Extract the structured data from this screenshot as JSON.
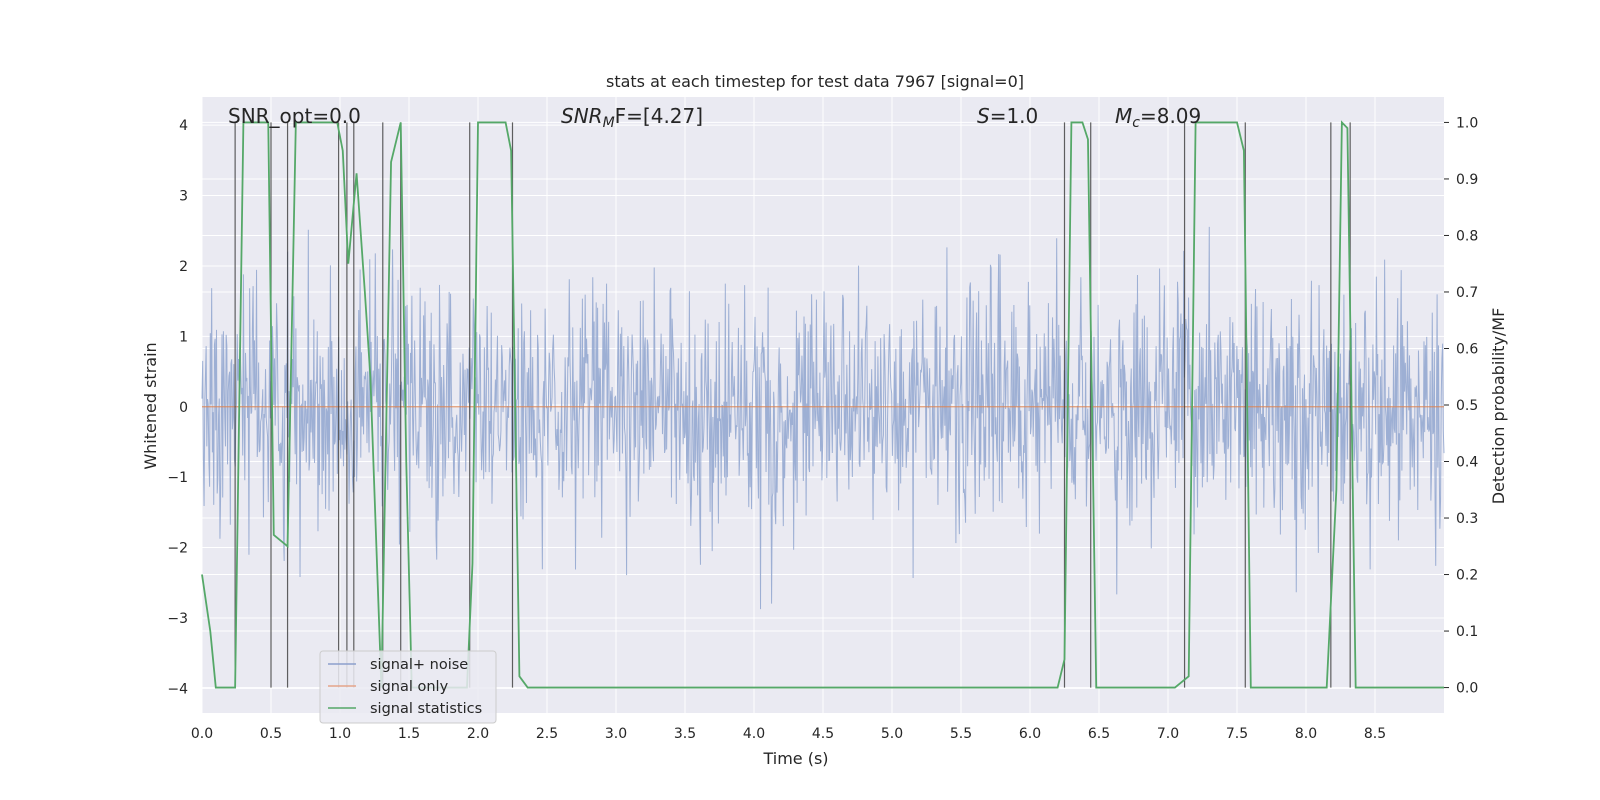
{
  "chart_data": {
    "type": "line",
    "title": "stats at each timestep for test data 7967 [signal=0]",
    "xlabel": "Time (s)",
    "ylabel": "Whitened strain",
    "y2label": "Detection probability/MF",
    "xlim": [
      0,
      9.0
    ],
    "ylim": [
      -4.35,
      4.4
    ],
    "y2lim": [
      -0.045,
      1.045
    ],
    "x_ticks": [
      0.0,
      0.5,
      1.0,
      1.5,
      2.0,
      2.5,
      3.0,
      3.5,
      4.0,
      4.5,
      5.0,
      5.5,
      6.0,
      6.5,
      7.0,
      7.5,
      8.0,
      8.5
    ],
    "x_tick_labels": [
      "0.0",
      "0.5",
      "1.0",
      "1.5",
      "2.0",
      "2.5",
      "3.0",
      "3.5",
      "4.0",
      "4.5",
      "5.0",
      "5.5",
      "6.0",
      "6.5",
      "7.0",
      "7.5",
      "8.0",
      "8.5"
    ],
    "y_ticks": [
      4,
      3,
      2,
      1,
      0,
      -1,
      -2,
      -3,
      -4
    ],
    "y_tick_labels": [
      "4",
      "3",
      "2",
      "1",
      "0",
      "−1",
      "−2",
      "−3",
      "−4"
    ],
    "y2_ticks": [
      1.0,
      0.9,
      0.8,
      0.7,
      0.6,
      0.5,
      0.4,
      0.3,
      0.2,
      0.1,
      0.0
    ],
    "y2_tick_labels": [
      "1.0",
      "0.9",
      "0.8",
      "0.7",
      "0.6",
      "0.5",
      "0.4",
      "0.3",
      "0.2",
      "0.1",
      "0.0"
    ],
    "annotations": {
      "snr_opt": "SNR_opt=0.0",
      "snr_mf_label": "SNR",
      "snr_mf_sub": "M",
      "snr_mf_tail": "F=[4.27]",
      "s_label": "S",
      "s_value": "=1.0",
      "mc_label": "M",
      "mc_sub": "c",
      "mc_value": "=8.09"
    },
    "legend": {
      "location": "lower-left",
      "entries": [
        {
          "label": "signal+ noise",
          "color": "#8c9fcc"
        },
        {
          "label": "signal only",
          "color": "#e5a48a"
        },
        {
          "label": "signal statistics",
          "color": "#55a868"
        }
      ]
    },
    "series": [
      {
        "name": "signal+ noise",
        "color": "#95a8d0",
        "kind": "noise",
        "samples": 1800,
        "amplitude_sigma": 0.85,
        "envelope": [
          -4.0,
          4.0
        ]
      },
      {
        "name": "signal only",
        "color": "#dd8452",
        "kind": "flat",
        "value": 0.0
      },
      {
        "name": "signal statistics",
        "color": "#55a868",
        "axis": "right",
        "x": [
          0.0,
          0.06,
          0.1,
          0.24,
          0.3,
          0.48,
          0.52,
          0.62,
          0.68,
          0.98,
          1.02,
          1.06,
          1.12,
          1.18,
          1.22,
          1.3,
          1.37,
          1.44,
          1.48,
          1.52,
          1.58,
          1.92,
          1.96,
          2.0,
          2.2,
          2.24,
          2.3,
          2.36,
          2.42,
          6.2,
          6.25,
          6.3,
          6.38,
          6.42,
          6.48,
          6.52,
          7.05,
          7.15,
          7.2,
          7.5,
          7.55,
          7.6,
          7.65,
          8.15,
          8.22,
          8.26,
          8.3,
          8.36,
          8.42,
          9.0
        ],
        "y": [
          0.2,
          0.1,
          0.0,
          0.0,
          1.0,
          1.0,
          0.27,
          0.25,
          1.0,
          1.0,
          0.95,
          0.75,
          0.91,
          0.7,
          0.55,
          0.0,
          0.93,
          1.0,
          0.4,
          0.0,
          0.0,
          0.0,
          0.22,
          1.0,
          1.0,
          0.95,
          0.02,
          0.0,
          0.0,
          0.0,
          0.05,
          1.0,
          1.0,
          0.97,
          0.0,
          0.0,
          0.0,
          0.02,
          1.0,
          1.0,
          0.95,
          0.0,
          0.0,
          0.0,
          0.35,
          1.0,
          0.99,
          0.0,
          0.0,
          0.0
        ]
      }
    ],
    "vertical_markers": [
      0.24,
      0.5,
      0.62,
      0.99,
      1.05,
      1.1,
      1.31,
      1.44,
      1.94,
      2.25,
      6.25,
      6.44,
      7.12,
      7.56,
      8.18,
      8.32
    ]
  }
}
